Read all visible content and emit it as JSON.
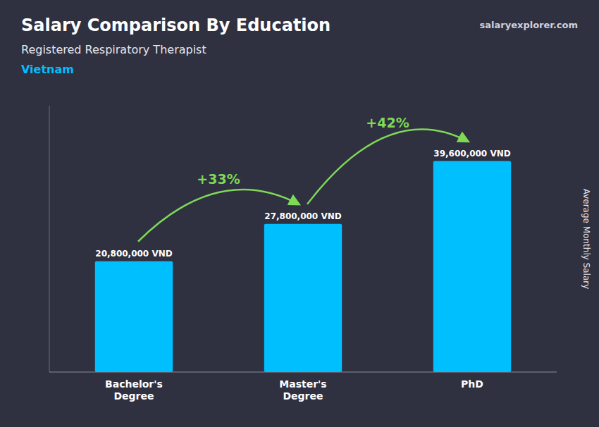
{
  "chart_data": {
    "type": "bar",
    "title": "Salary Comparison By Education",
    "subtitle": "Registered Respiratory Therapist",
    "country": "Vietnam",
    "source": "salaryexplorer.com",
    "y_label": "Average Monthly Salary",
    "categories": [
      "Bachelor's\nDegree",
      "Master's\nDegree",
      "PhD"
    ],
    "values": [
      20800000,
      27800000,
      39600000
    ],
    "value_labels": [
      "20,800,000 VND",
      "27,800,000 VND",
      "39,600,000 VND"
    ],
    "data_labels": true,
    "annotations": [
      "+33%",
      "+42%"
    ],
    "color": "#00BFFF",
    "ylim": [
      0,
      50000000
    ],
    "tick_labels": "x",
    "grid": false
  }
}
